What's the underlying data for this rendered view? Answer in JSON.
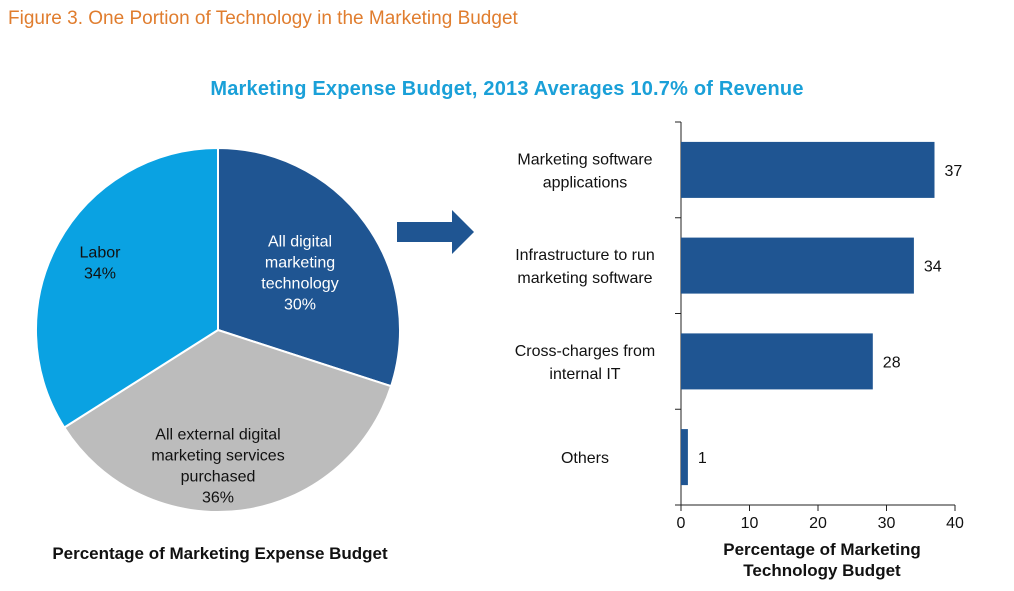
{
  "figure_title": "Figure 3. One Portion of Technology in the Marketing Budget",
  "colors": {
    "figure_title": "#e07d2e",
    "main_title": "#1aa0d8",
    "dark_blue": "#1f5592",
    "light_blue": "#0aa2e2",
    "gray": "#bcbcbc",
    "axis": "#222222"
  },
  "chart_data": [
    {
      "type": "pie",
      "title": "Marketing Expense Budget, 2013 Averages 10.7% of Revenue",
      "xlabel": "Percentage of Marketing Expense Budget",
      "slices": [
        {
          "name": "All digital marketing technology",
          "value": 30,
          "label_lines": [
            "All digital",
            "marketing",
            "technology",
            "30%"
          ],
          "color": "#1f5592",
          "text_color": "#ffffff"
        },
        {
          "name": "All external digital marketing services purchased",
          "value": 36,
          "label_lines": [
            "All external digital",
            "marketing services",
            "purchased",
            "36%"
          ],
          "color": "#bcbcbc",
          "text_color": "#111111"
        },
        {
          "name": "Labor",
          "value": 34,
          "label_lines": [
            "Labor",
            "34%"
          ],
          "color": "#0aa2e2",
          "text_color": "#111111"
        }
      ]
    },
    {
      "type": "bar",
      "orientation": "horizontal",
      "xlabel_lines": [
        "Percentage of Marketing",
        "Technology Budget"
      ],
      "categories": [
        {
          "name": "Marketing software applications",
          "lines": [
            "Marketing software",
            "applications"
          ]
        },
        {
          "name": "Infrastructure to run marketing software",
          "lines": [
            "Infrastructure to run",
            "marketing software"
          ]
        },
        {
          "name": "Cross-charges from internal IT",
          "lines": [
            "Cross-charges from",
            "internal IT"
          ]
        },
        {
          "name": "Others",
          "lines": [
            "Others"
          ]
        }
      ],
      "values": [
        37,
        34,
        28,
        1
      ],
      "xlim": [
        0,
        40
      ],
      "xticks": [
        "0",
        "10",
        "20",
        "30",
        "40"
      ]
    }
  ]
}
